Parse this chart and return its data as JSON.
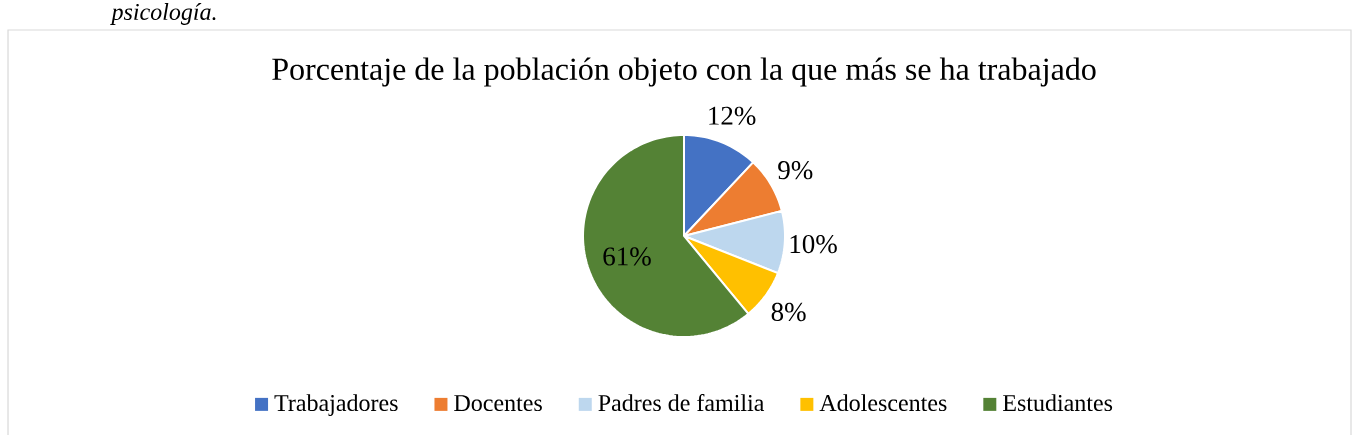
{
  "chart_data": {
    "type": "pie",
    "title": "Porcentaje de la población objeto con la que más se ha trabajado",
    "categories": [
      "Trabajadores",
      "Docentes",
      "Padres de familia",
      "Adolescentes",
      "Estudiantes"
    ],
    "values": [
      12,
      9,
      10,
      8,
      61
    ],
    "colors": [
      "#4472c4",
      "#ed7d31",
      "#bdd7ee",
      "#ffc000",
      "#548235"
    ],
    "value_labels": [
      "12%",
      "9%",
      "10%",
      "8%",
      "61%"
    ],
    "legend": "bottom",
    "annotations": [
      "psicología."
    ]
  }
}
